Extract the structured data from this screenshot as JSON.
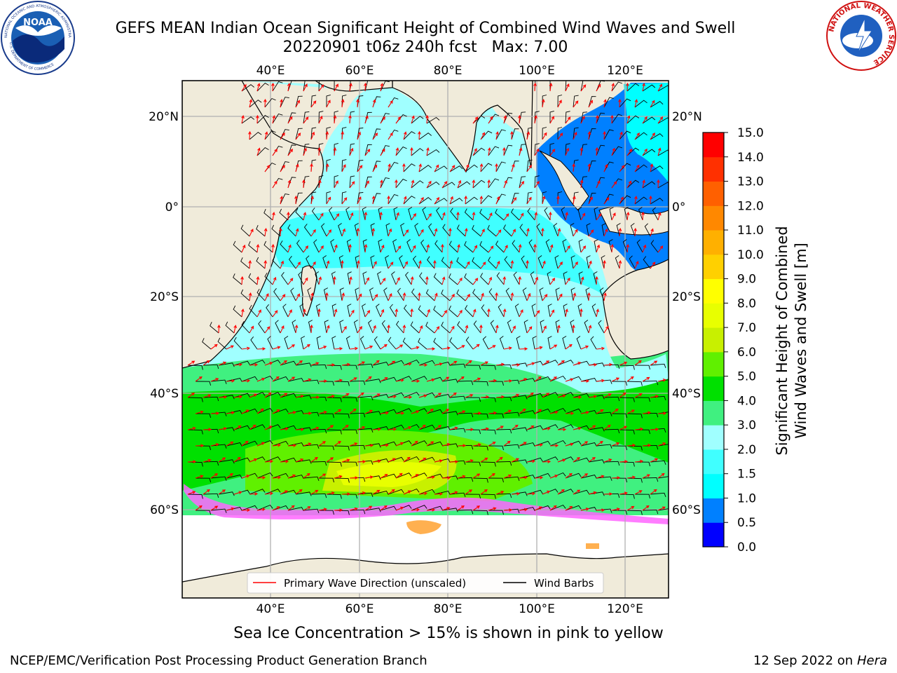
{
  "header": {
    "title_line1": "GEFS MEAN Indian Ocean Significant Height of Combined Wind Waves and Swell",
    "title_line2": "20220901 t06z 240h fcst   Max: 7.00"
  },
  "map": {
    "lon_ticks": [
      "40°E",
      "60°E",
      "80°E",
      "100°E",
      "120°E"
    ],
    "lat_ticks": [
      "20°N",
      "0°",
      "20°S",
      "40°S",
      "60°S"
    ],
    "legend": {
      "wave_direction": "Primary Wave Direction (unscaled)",
      "wind_barbs": "Wind Barbs"
    }
  },
  "colorbar": {
    "label_line1": "Significant Height of Combined",
    "label_line2": "Wind Waves and Swell [m]",
    "ticks": [
      "15.0",
      "14.0",
      "13.0",
      "12.0",
      "11.0",
      "10.0",
      "9.0",
      "8.0",
      "7.0",
      "6.0",
      "5.0",
      "4.0",
      "3.0",
      "2.0",
      "1.5",
      "1.0",
      "0.5",
      "0.0"
    ],
    "colors": [
      "#0000ff",
      "#0080ff",
      "#00ffff",
      "#40ffff",
      "#a0ffff",
      "#40f080",
      "#00e000",
      "#60f000",
      "#c8f000",
      "#e8ff00",
      "#ffff00",
      "#ffd000",
      "#ffb000",
      "#ff8800",
      "#ff6000",
      "#ff3000",
      "#ff0000"
    ]
  },
  "footer": {
    "ice_note": "Sea Ice Concentration > 15% is shown in pink to yellow",
    "credit": "NCEP/EMC/Verification Post Processing Product Generation Branch",
    "date": "12 Sep 2022 on",
    "host": "Hera"
  },
  "logos": {
    "noaa_text": "NOAA",
    "noaa_ring": "NATIONAL OCEANIC AND ATMOSPHERIC ADMINISTRATION",
    "noaa_ring_bottom": "U.S. DEPARTMENT OF COMMERCE",
    "nws_ring": "NATIONAL WEATHER SERVICE"
  }
}
